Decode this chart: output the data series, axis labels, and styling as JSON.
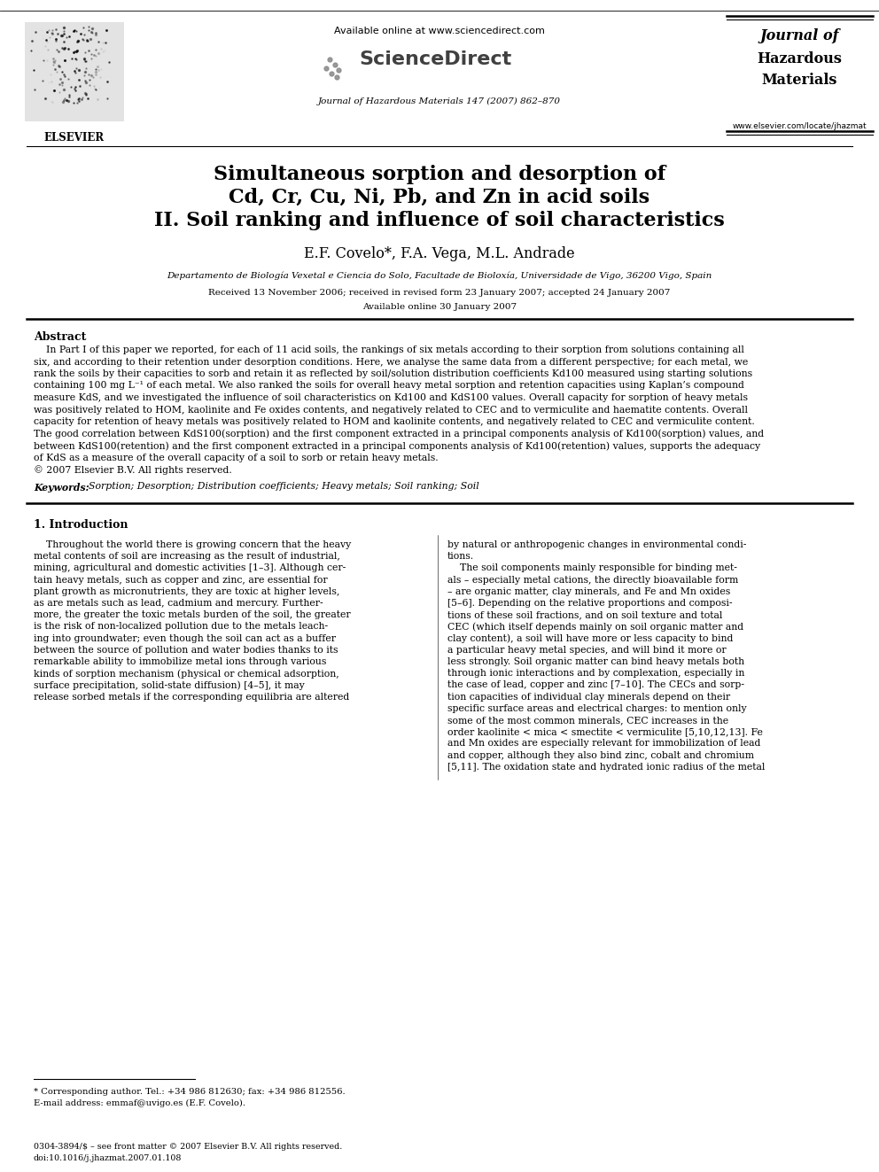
{
  "background_color": "#ffffff",
  "header": {
    "available_online": "Available online at www.sciencedirect.com",
    "sciencedirect": "ScienceDirect",
    "journal_line": "Journal of Hazardous Materials 147 (2007) 862–870",
    "journal_name_line1": "Journal of",
    "journal_name_line2": "Hazardous",
    "journal_name_line3": "Materials",
    "journal_url": "www.elsevier.com/locate/jhazmat",
    "elsevier": "ELSEVIER"
  },
  "title_line1": "Simultaneous sorption and desorption of",
  "title_line2": "Cd, Cr, Cu, Ni, Pb, and Zn in acid soils",
  "title_line3": "II. Soil ranking and influence of soil characteristics",
  "authors": "E.F. Covelo*, F.A. Vega, M.L. Andrade",
  "affiliation": "Departamento de Biología Vexetal e Ciencia do Solo, Facultade de Bioloxía, Universidade de Vigo, 36200 Vigo, Spain",
  "received": "Received 13 November 2006; received in revised form 23 January 2007; accepted 24 January 2007",
  "available": "Available online 30 January 2007",
  "abstract_title": "Abstract",
  "copyright": "© 2007 Elsevier B.V. All rights reserved.",
  "keywords_label": "Keywords:",
  "keywords": "  Sorption; Desorption; Distribution coefficients; Heavy metals; Soil ranking; Soil",
  "section1_title": "1. Introduction",
  "footnote_star": "* Corresponding author. Tel.: +34 986 812630; fax: +34 986 812556.",
  "footnote_email": "E-mail address: emmaf@uvigo.es (E.F. Covelo).",
  "footer_issn": "0304-3894/$ – see front matter © 2007 Elsevier B.V. All rights reserved.",
  "footer_doi": "doi:10.1016/j.jhazmat.2007.01.108",
  "abstract_lines": [
    "    In Part I of this paper we reported, for each of 11 acid soils, the rankings of six metals according to their sorption from solutions containing all",
    "six, and according to their retention under desorption conditions. Here, we analyse the same data from a different perspective; for each metal, we",
    "rank the soils by their capacities to sorb and retain it as reflected by soil/solution distribution coefficients Kd100 measured using starting solutions",
    "containing 100 mg L⁻¹ of each metal. We also ranked the soils for overall heavy metal sorption and retention capacities using Kaplan’s compound",
    "measure KdS, and we investigated the influence of soil characteristics on Kd100 and KdS100 values. Overall capacity for sorption of heavy metals",
    "was positively related to HOM, kaolinite and Fe oxides contents, and negatively related to CEC and to vermiculite and haematite contents. Overall",
    "capacity for retention of heavy metals was positively related to HOM and kaolinite contents, and negatively related to CEC and vermiculite content.",
    "The good correlation between KdS100(sorption) and the first component extracted in a principal components analysis of Kd100(sorption) values, and",
    "between KdS100(retention) and the first component extracted in a principal components analysis of Kd100(retention) values, supports the adequacy",
    "of KdS as a measure of the overall capacity of a soil to sorb or retain heavy metals."
  ],
  "col1_lines": [
    "    Throughout the world there is growing concern that the heavy",
    "metal contents of soil are increasing as the result of industrial,",
    "mining, agricultural and domestic activities [1–3]. Although cer-",
    "tain heavy metals, such as copper and zinc, are essential for",
    "plant growth as micronutrients, they are toxic at higher levels,",
    "as are metals such as lead, cadmium and mercury. Further-",
    "more, the greater the toxic metals burden of the soil, the greater",
    "is the risk of non-localized pollution due to the metals leach-",
    "ing into groundwater; even though the soil can act as a buffer",
    "between the source of pollution and water bodies thanks to its",
    "remarkable ability to immobilize metal ions through various",
    "kinds of sorption mechanism (physical or chemical adsorption,",
    "surface precipitation, solid-state diffusion) [4–5], it may",
    "release sorbed metals if the corresponding equilibria are altered"
  ],
  "col2_lines": [
    "by natural or anthropogenic changes in environmental condi-",
    "tions.",
    "    The soil components mainly responsible for binding met-",
    "als – especially metal cations, the directly bioavailable form",
    "– are organic matter, clay minerals, and Fe and Mn oxides",
    "[5–6]. Depending on the relative proportions and composi-",
    "tions of these soil fractions, and on soil texture and total",
    "CEC (which itself depends mainly on soil organic matter and",
    "clay content), a soil will have more or less capacity to bind",
    "a particular heavy metal species, and will bind it more or",
    "less strongly. Soil organic matter can bind heavy metals both",
    "through ionic interactions and by complexation, especially in",
    "the case of lead, copper and zinc [7–10]. The CECs and sorp-",
    "tion capacities of individual clay minerals depend on their",
    "specific surface areas and electrical charges: to mention only",
    "some of the most common minerals, CEC increases in the",
    "order kaolinite < mica < smectite < vermiculite [5,10,12,13]. Fe",
    "and Mn oxides are especially relevant for immobilization of lead",
    "and copper, although they also bind zinc, cobalt and chromium",
    "[5,11]. The oxidation state and hydrated ionic radius of the metal"
  ]
}
